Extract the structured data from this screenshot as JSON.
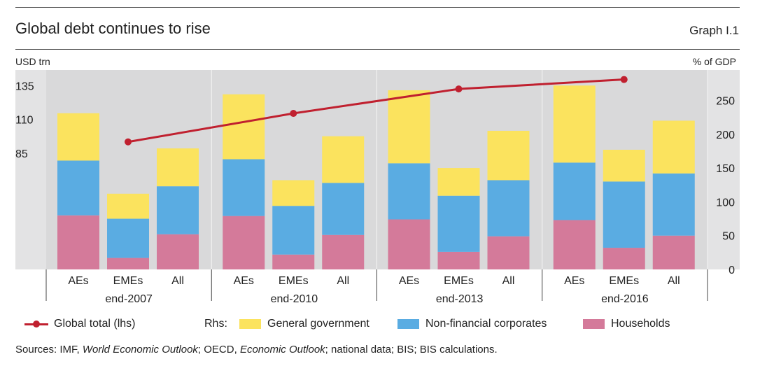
{
  "header": {
    "title": "Global debt continues to rise",
    "graph_id": "Graph I.1"
  },
  "chart_data": {
    "type": "bar",
    "stacked": true,
    "left_axis": {
      "label": "USD trn",
      "tick_labels": [
        "135",
        "110",
        "85"
      ],
      "tick_values": [
        135,
        110,
        85
      ],
      "range": [
        0,
        147
      ]
    },
    "right_axis": {
      "label": "% of GDP",
      "tick_labels": [
        "250",
        "200",
        "150",
        "100",
        "50",
        "0"
      ],
      "tick_values": [
        250,
        200,
        150,
        100,
        50,
        0
      ],
      "range": [
        0,
        295
      ]
    },
    "groups": [
      "end-2007",
      "end-2010",
      "end-2013",
      "end-2016"
    ],
    "categories": [
      "AEs",
      "EMEs",
      "All"
    ],
    "series": [
      {
        "name": "Households",
        "color": "#d47a9a",
        "values": [
          [
            80,
            17,
            52
          ],
          [
            79,
            22,
            51
          ],
          [
            74,
            26,
            49
          ],
          [
            73,
            32,
            50
          ]
        ]
      },
      {
        "name": "Non-financial corporates",
        "color": "#5aace2",
        "values": [
          [
            81,
            58,
            71
          ],
          [
            84,
            72,
            77
          ],
          [
            83,
            83,
            83
          ],
          [
            85,
            98,
            92
          ]
        ]
      },
      {
        "name": "General government",
        "color": "#fbe35e",
        "values": [
          [
            70,
            37,
            56
          ],
          [
            96,
            38,
            69
          ],
          [
            108,
            41,
            73
          ],
          [
            114,
            47,
            78
          ]
        ]
      }
    ],
    "global_total": {
      "name": "Global total (lhs)",
      "color": "#c0202f",
      "values": [
        94,
        115,
        133,
        140
      ]
    },
    "grid": false,
    "legend_position": "bottom"
  },
  "legend": {
    "global_total": "Global total (lhs)",
    "rhs_label": "Rhs:",
    "general_government": "General government",
    "non_financial_corporates": "Non-financial corporates",
    "households": "Households"
  },
  "sources": {
    "prefix": "Sources: IMF, ",
    "weo": "World Economic Outlook",
    "mid": "; OECD, ",
    "eo": "Economic Outlook",
    "suffix": "; national data; BIS; BIS calculations."
  }
}
